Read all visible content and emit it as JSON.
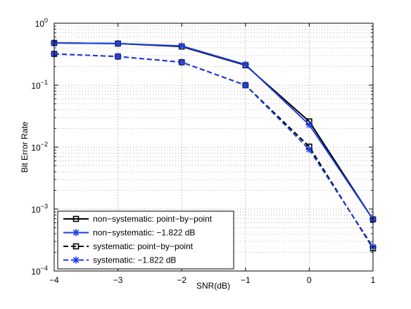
{
  "chart_data": {
    "type": "line",
    "title": "",
    "xlabel": "SNR(dB)",
    "ylabel": "Bit Error Rate",
    "xlim": [
      -4,
      1
    ],
    "ylim": [
      0.0001,
      1
    ],
    "yscale": "log",
    "grid": "on (dotted, major and minor)",
    "legend_position": "bottom-left",
    "x_ticks": [
      "−4",
      "−3",
      "−2",
      "−1",
      "0",
      "1"
    ],
    "y_ticks": [
      {
        "base": "10",
        "exp": "0"
      },
      {
        "base": "10",
        "exp": "−1"
      },
      {
        "base": "10",
        "exp": "−2"
      },
      {
        "base": "10",
        "exp": "−3"
      },
      {
        "base": "10",
        "exp": "−4"
      }
    ],
    "series": [
      {
        "name": "non−systematic: point−by−point",
        "color": "#000000",
        "line": "solid",
        "marker": "square",
        "x": [
          -4,
          -3,
          -2,
          -1,
          0,
          1
        ],
        "y": [
          0.48,
          0.47,
          0.42,
          0.21,
          0.026,
          0.00068
        ]
      },
      {
        "name": "non−systematic: −1.822 dB",
        "color": "#1f3fe0",
        "line": "solid",
        "marker": "star",
        "x": [
          -4,
          -3,
          -2,
          -1,
          0,
          1
        ],
        "y": [
          0.48,
          0.47,
          0.43,
          0.215,
          0.023,
          0.00068
        ]
      },
      {
        "name": "systematic: point−by−point",
        "color": "#000000",
        "line": "dashed",
        "marker": "square",
        "x": [
          -4,
          -3,
          -2,
          -1,
          0,
          1
        ],
        "y": [
          0.32,
          0.29,
          0.235,
          0.1,
          0.0102,
          0.000232
        ]
      },
      {
        "name": "systematic: −1.822 dB",
        "color": "#1f3fe0",
        "line": "dashed",
        "marker": "star",
        "x": [
          -4,
          -3,
          -2,
          -1,
          0,
          1
        ],
        "y": [
          0.32,
          0.29,
          0.235,
          0.1,
          0.0092,
          0.000245
        ]
      }
    ]
  }
}
